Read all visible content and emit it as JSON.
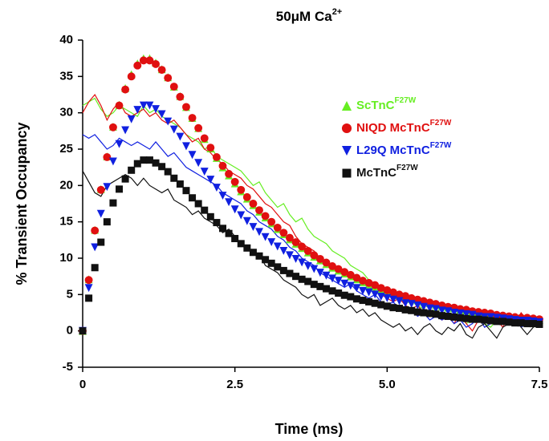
{
  "chart_data": {
    "type": "scatter",
    "title": "50μM Ca",
    "title_sup": "2+",
    "x_label": "Time (ms)",
    "y_label": "% Transient Occupancy",
    "xlim": [
      0,
      7.5
    ],
    "ylim": [
      -5,
      40
    ],
    "xticks": [
      0,
      2.5,
      {
        "value": 5,
        "label": "5.0"
      },
      7.5
    ],
    "yticks": [
      -5,
      0,
      5,
      10,
      15,
      20,
      25,
      30,
      35,
      40
    ],
    "legend": "upper right",
    "x": [
      0,
      0.1,
      0.2,
      0.3,
      0.4,
      0.5,
      0.6,
      0.7,
      0.8,
      0.9,
      1,
      1.1,
      1.2,
      1.3,
      1.4,
      1.5,
      1.6,
      1.7,
      1.8,
      1.9,
      2,
      2.1,
      2.2,
      2.3,
      2.4,
      2.5,
      2.6,
      2.7,
      2.8,
      2.9,
      3,
      3.1,
      3.2,
      3.3,
      3.4,
      3.5,
      3.6,
      3.7,
      3.8,
      3.9,
      4,
      4.1,
      4.2,
      4.3,
      4.4,
      4.5,
      4.6,
      4.7,
      4.8,
      4.9,
      5,
      5.1,
      5.2,
      5.3,
      5.4,
      5.5,
      5.6,
      5.7,
      5.8,
      5.9,
      6,
      6.1,
      6.2,
      6.3,
      6.4,
      6.5,
      6.6,
      6.7,
      6.8,
      6.9,
      7,
      7.1,
      7.2,
      7.3,
      7.4,
      7.5
    ],
    "series": [
      {
        "name": "ScTnC",
        "name_sup": "F27W",
        "color": "#66ee22",
        "marker": "triangle-up",
        "values": [
          0,
          7.1,
          13.9,
          19.5,
          24,
          28.1,
          31.1,
          33.4,
          35.3,
          36.8,
          37.5,
          37.5,
          36.9,
          36,
          34.9,
          33.6,
          32.3,
          30.8,
          29.3,
          27.9,
          26.4,
          25.1,
          23.8,
          22.5,
          21.4,
          20.3,
          19.2,
          18.2,
          17.3,
          16.4,
          15.6,
          14.8,
          14,
          13.3,
          12.6,
          12,
          11.4,
          10.8,
          10.2,
          9.7,
          9.2,
          8.7,
          8.3,
          7.9,
          7.5,
          7.1,
          6.7,
          6.4,
          6.1,
          5.7,
          5.5,
          5.2,
          4.9,
          4.7,
          4.4,
          4.2,
          4,
          3.8,
          3.6,
          3.4,
          3.2,
          3.1,
          2.9,
          2.8,
          2.6,
          2.5,
          2.4,
          2.3,
          2.1,
          2,
          1.9,
          1.8,
          1.7,
          1.7,
          1.5,
          1.5
        ],
        "trace": [
          31,
          31.5,
          32,
          30.5,
          29.5,
          30,
          31,
          30.5,
          30,
          29.5,
          31,
          30,
          30.5,
          29.5,
          29,
          28.5,
          28,
          27,
          26.5,
          26,
          25,
          25.5,
          24,
          23.5,
          23,
          22.5,
          22,
          21,
          20,
          20.5,
          19,
          18,
          17,
          17.5,
          16,
          15,
          15.5,
          14,
          13,
          12.5,
          12,
          11,
          10.5,
          10,
          9,
          8.5,
          8,
          7,
          6.5,
          6,
          5.5,
          5,
          4.5,
          4,
          4.5,
          3.5,
          3,
          2.5,
          3,
          2,
          2.5,
          1.5,
          2,
          1,
          1.5,
          2.5,
          1,
          0.5,
          1.5,
          2,
          1,
          2,
          1,
          1.5,
          0.5,
          1.5
        ]
      },
      {
        "name": "NIQD McTnC",
        "name_sup": "F27W",
        "color": "#e01010",
        "marker": "circle",
        "values": [
          0,
          7,
          13.8,
          19.4,
          23.9,
          28,
          31,
          33.2,
          35,
          36.5,
          37.2,
          37.2,
          36.7,
          35.9,
          34.8,
          33.6,
          32.2,
          30.8,
          29.3,
          27.9,
          26.5,
          25.2,
          23.9,
          22.7,
          21.6,
          20.5,
          19.4,
          18.4,
          17.5,
          16.6,
          15.8,
          15,
          14.2,
          13.5,
          12.8,
          12.2,
          11.6,
          11,
          10.4,
          9.9,
          9.4,
          8.9,
          8.5,
          8.1,
          7.7,
          7.3,
          6.9,
          6.6,
          6.3,
          5.9,
          5.6,
          5.3,
          5,
          4.8,
          4.5,
          4.3,
          4.1,
          3.9,
          3.7,
          3.5,
          3.3,
          3.2,
          3,
          2.9,
          2.7,
          2.6,
          2.5,
          2.4,
          2.2,
          2.1,
          2,
          1.9,
          1.8,
          1.8,
          1.7,
          1.6
        ],
        "trace": [
          30,
          31.5,
          32.5,
          31,
          29,
          30.5,
          31.5,
          30,
          29.5,
          30,
          30.5,
          29.5,
          30,
          29,
          28.5,
          29,
          28,
          27,
          26,
          26.5,
          25,
          24.5,
          23.5,
          23,
          22,
          21.5,
          21,
          20,
          19.5,
          18.5,
          17.5,
          17,
          16,
          15,
          14.5,
          13,
          12,
          11.5,
          11,
          10,
          9.5,
          9,
          8.5,
          8,
          7.5,
          7,
          6.5,
          6,
          5.5,
          5,
          4.5,
          4,
          4.5,
          3.5,
          3,
          3.5,
          2.5,
          2,
          2.5,
          1.5,
          2,
          1,
          2.5,
          1,
          0,
          1.5,
          2,
          1,
          1.5,
          0.5,
          2,
          1,
          2.5,
          1.5,
          1,
          1.5
        ]
      },
      {
        "name": "L29Q McTnC",
        "name_sup": "F27W",
        "color": "#1020e0",
        "marker": "triangle-down",
        "values": [
          0,
          5.9,
          11.5,
          16.1,
          19.8,
          23.3,
          25.7,
          27.6,
          29.1,
          30.4,
          31,
          31,
          30.5,
          29.8,
          28.8,
          27.7,
          26.7,
          25.4,
          24.2,
          23.1,
          21.9,
          20.8,
          19.7,
          18.6,
          17.7,
          16.7,
          15.9,
          15.1,
          14.3,
          13.6,
          12.9,
          12.2,
          11.6,
          11,
          10.4,
          9.9,
          9.4,
          8.9,
          8.5,
          8,
          7.6,
          7.2,
          6.9,
          6.5,
          6.2,
          5.9,
          5.5,
          5.3,
          5,
          4.7,
          4.5,
          4.3,
          4.1,
          3.8,
          3.7,
          3.5,
          3.3,
          3.1,
          3,
          2.8,
          2.7,
          2.5,
          2.4,
          2.3,
          2.2,
          2,
          1.9,
          1.9,
          1.8,
          1.7,
          1.6,
          1.5,
          1.4,
          1.4,
          1.3,
          1.2
        ],
        "trace": [
          27,
          26.5,
          27,
          26,
          25,
          25.5,
          26.5,
          26,
          25.5,
          26,
          25.5,
          25,
          26,
          25,
          24,
          24.5,
          23.5,
          22.5,
          22,
          21.5,
          21,
          20.5,
          20,
          19,
          18.5,
          18,
          17.5,
          16.5,
          16,
          15,
          14.5,
          14,
          13,
          12.5,
          11.5,
          11,
          10,
          9.5,
          9,
          8,
          7.5,
          7,
          6.5,
          6,
          6.5,
          5.5,
          5,
          4.5,
          5,
          4,
          3.5,
          4,
          3,
          2.5,
          3,
          2,
          2.5,
          1.5,
          2,
          1.5,
          2,
          1,
          1.5,
          0.5,
          1,
          2,
          0.5,
          1,
          1.5,
          2.5,
          1,
          1.5,
          0.5,
          1,
          1.5,
          1
        ]
      },
      {
        "name": "McTnC",
        "name_sup": "F27W",
        "color": "#111111",
        "marker": "square",
        "values": [
          0,
          4.5,
          8.7,
          12.2,
          15,
          17.6,
          19.5,
          20.9,
          22.1,
          23,
          23.5,
          23.5,
          23.1,
          22.6,
          21.9,
          21,
          20.2,
          19.3,
          18.3,
          17.5,
          16.6,
          15.7,
          14.9,
          14.1,
          13.4,
          12.7,
          12,
          11.4,
          10.8,
          10.3,
          9.8,
          9.3,
          8.8,
          8.3,
          7.9,
          7.5,
          7.1,
          6.8,
          6.4,
          6.1,
          5.8,
          5.5,
          5.2,
          4.9,
          4.7,
          4.4,
          4.2,
          4,
          3.8,
          3.6,
          3.4,
          3.2,
          3.1,
          2.9,
          2.8,
          2.6,
          2.5,
          2.4,
          2.3,
          2.1,
          2,
          1.9,
          1.8,
          1.7,
          1.6,
          1.6,
          1.5,
          1.4,
          1.3,
          1.3,
          1.2,
          1.1,
          1.1,
          1,
          1,
          0.9
        ],
        "trace": [
          22,
          20.5,
          19,
          18.5,
          20,
          20.5,
          21,
          21.5,
          21,
          20,
          21,
          20,
          19.5,
          19,
          19.5,
          18,
          17.5,
          17,
          16,
          16.5,
          15.5,
          15,
          14.5,
          13.5,
          14,
          13,
          12,
          11.5,
          11,
          10.5,
          9,
          8.5,
          8,
          7,
          6.5,
          6,
          5,
          4.5,
          5,
          3.5,
          4,
          4.5,
          3.5,
          3,
          3.5,
          2.5,
          3,
          2,
          2.5,
          1.5,
          1,
          0.5,
          1,
          0,
          0.5,
          -0.5,
          0.5,
          1,
          0,
          -0.5,
          0.5,
          0,
          1,
          -0.5,
          -1,
          0.5,
          1,
          0,
          -1,
          0.5,
          1,
          2,
          0.5,
          -0.5,
          0.5,
          1
        ]
      }
    ]
  }
}
